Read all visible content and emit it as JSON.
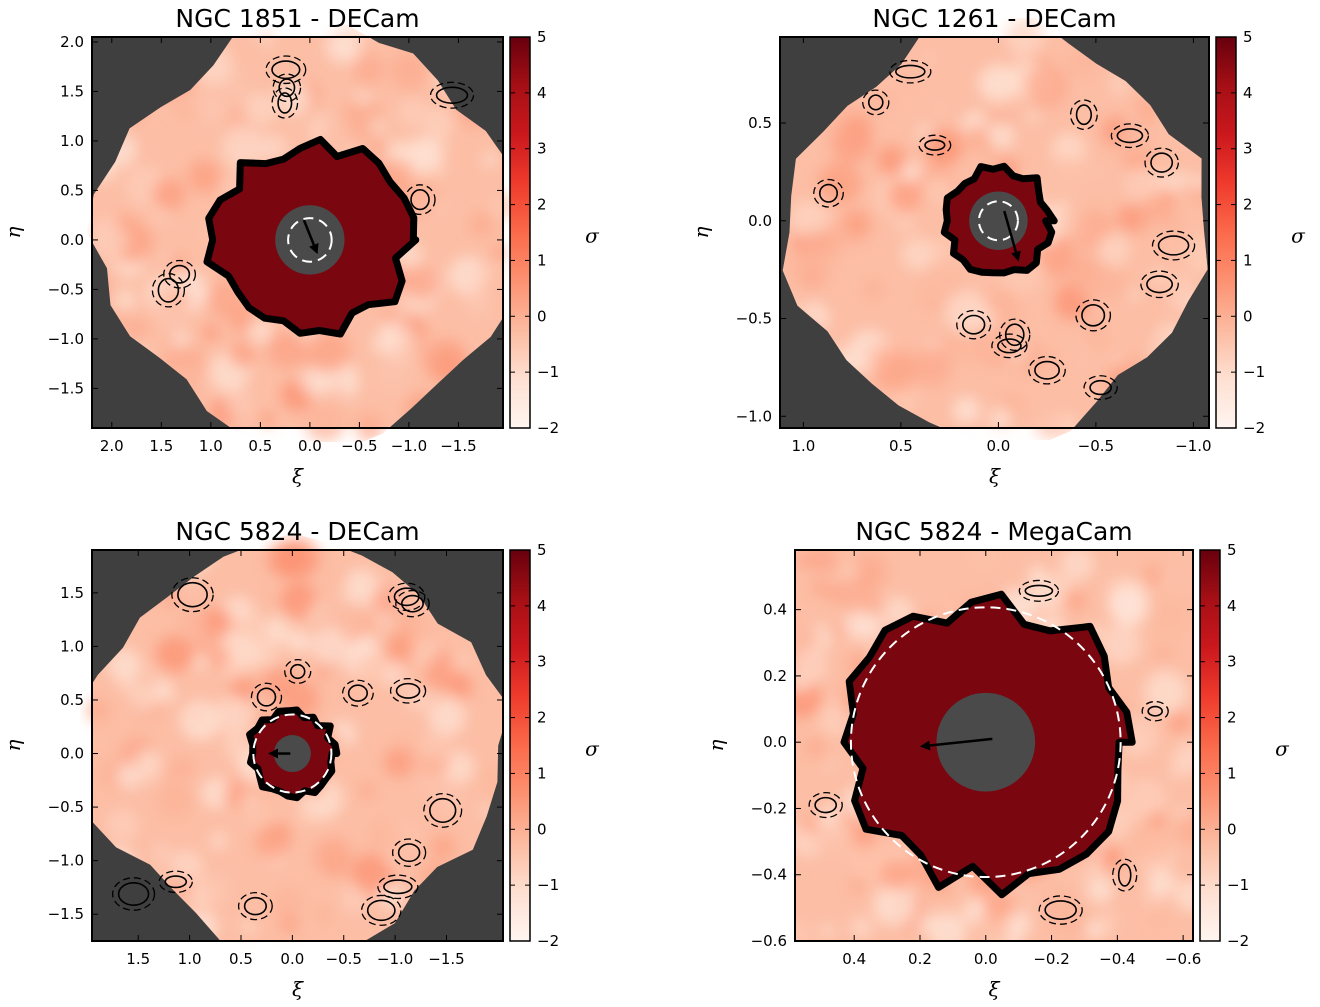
{
  "chart_data": [
    {
      "type": "heatmap",
      "title": "NGC 1851 - DECam",
      "xlabel": "ξ",
      "ylabel": "η",
      "colorbar_label": "σ",
      "xlim": [
        2.2,
        -1.95
      ],
      "ylim": [
        -1.9,
        2.05
      ],
      "xticks": [
        2.0,
        1.5,
        1.0,
        0.5,
        0.0,
        -0.5,
        -1.0,
        -1.5
      ],
      "xtick_labels": [
        "2.0",
        "1.5",
        "1.0",
        "0.5",
        "0.0",
        "−0.5",
        "−1.0",
        "−1.5"
      ],
      "yticks": [
        -1.5,
        -1.0,
        -0.5,
        0.0,
        0.5,
        1.0,
        1.5,
        2.0
      ],
      "ytick_labels": [
        "−1.5",
        "−1.0",
        "−0.5",
        "0.0",
        "0.5",
        "1.0",
        "1.5",
        "2.0"
      ],
      "colorbar_range": [
        -2,
        5
      ],
      "colorbar_ticks": [
        -2,
        -1,
        0,
        1,
        2,
        3,
        4,
        5
      ],
      "colorbar_tick_labels": [
        "−2",
        "−1",
        "0",
        "1",
        "2",
        "3",
        "4",
        "5"
      ],
      "masked_radius": 0.35,
      "dashed_circle_radius": 0.22,
      "arrow": [
        0.06,
        0.2,
        -0.04,
        -0.05
      ]
    },
    {
      "type": "heatmap",
      "title": "NGC 1261 - DECam",
      "xlabel": "ξ",
      "ylabel": "η",
      "colorbar_label": "σ",
      "xlim": [
        1.12,
        -1.08
      ],
      "ylim": [
        -1.06,
        0.94
      ],
      "xticks": [
        1.0,
        0.5,
        0.0,
        -0.5,
        -1.0
      ],
      "xtick_labels": [
        "1.0",
        "0.5",
        "0.0",
        "−0.5",
        "−1.0"
      ],
      "yticks": [
        -1.0,
        -0.5,
        0.0,
        0.5
      ],
      "ytick_labels": [
        "−1.0",
        "−0.5",
        "0.0",
        "0.5"
      ],
      "colorbar_range": [
        -2,
        5
      ],
      "colorbar_ticks": [
        -2,
        -1,
        0,
        1,
        2,
        3,
        4,
        5
      ],
      "colorbar_tick_labels": [
        "−2",
        "−1",
        "0",
        "1",
        "2",
        "3",
        "4",
        "5"
      ],
      "masked_radius": 0.15,
      "dashed_circle_radius": 0.1,
      "arrow": [
        -0.03,
        0.05,
        -0.09,
        -0.16
      ]
    },
    {
      "type": "heatmap",
      "title": "NGC 5824 - DECam",
      "xlabel": "ξ",
      "ylabel": "η",
      "colorbar_label": "σ",
      "xlim": [
        1.95,
        -2.05
      ],
      "ylim": [
        -1.75,
        1.9
      ],
      "xticks": [
        1.5,
        1.0,
        0.5,
        0.0,
        -0.5,
        -1.0,
        -1.5
      ],
      "xtick_labels": [
        "1.5",
        "1.0",
        "0.5",
        "0.0",
        "−0.5",
        "−1.0",
        "−1.5"
      ],
      "yticks": [
        -1.5,
        -1.0,
        -0.5,
        0.0,
        0.5,
        1.0,
        1.5
      ],
      "ytick_labels": [
        "−1.5",
        "−1.0",
        "−0.5",
        "0.0",
        "0.5",
        "1.0",
        "1.5"
      ],
      "colorbar_range": [
        -2,
        5
      ],
      "colorbar_ticks": [
        -2,
        -1,
        0,
        1,
        2,
        3,
        4,
        5
      ],
      "colorbar_tick_labels": [
        "−2",
        "−1",
        "0",
        "1",
        "2",
        "3",
        "4",
        "5"
      ],
      "masked_radius": 0.18,
      "dashed_circle_radius": 0.38,
      "arrow": [
        0.02,
        0.0,
        0.14,
        0.0
      ]
    },
    {
      "type": "heatmap",
      "title": "NGC 5824 - MegaCam",
      "xlabel": "ξ",
      "ylabel": "η",
      "colorbar_label": "σ",
      "xlim": [
        0.58,
        -0.63
      ],
      "ylim": [
        -0.6,
        0.58
      ],
      "xticks": [
        0.4,
        0.2,
        0.0,
        -0.2,
        -0.4,
        -0.6
      ],
      "xtick_labels": [
        "0.4",
        "0.2",
        "0.0",
        "−0.2",
        "−0.4",
        "−0.6"
      ],
      "yticks": [
        -0.6,
        -0.4,
        -0.2,
        0.0,
        0.2,
        0.4
      ],
      "ytick_labels": [
        "−0.6",
        "−0.4",
        "−0.2",
        "0.0",
        "0.2",
        "0.4"
      ],
      "colorbar_range": [
        -2,
        5
      ],
      "colorbar_ticks": [
        -2,
        -1,
        0,
        1,
        2,
        3,
        4,
        5
      ],
      "colorbar_tick_labels": [
        "−2",
        "−1",
        "0",
        "1",
        "2",
        "3",
        "4",
        "5"
      ],
      "masked_radius": 0.15,
      "dashed_circle_radius": 0.41,
      "arrow": [
        -0.02,
        0.01,
        0.17,
        -0.01
      ]
    }
  ]
}
